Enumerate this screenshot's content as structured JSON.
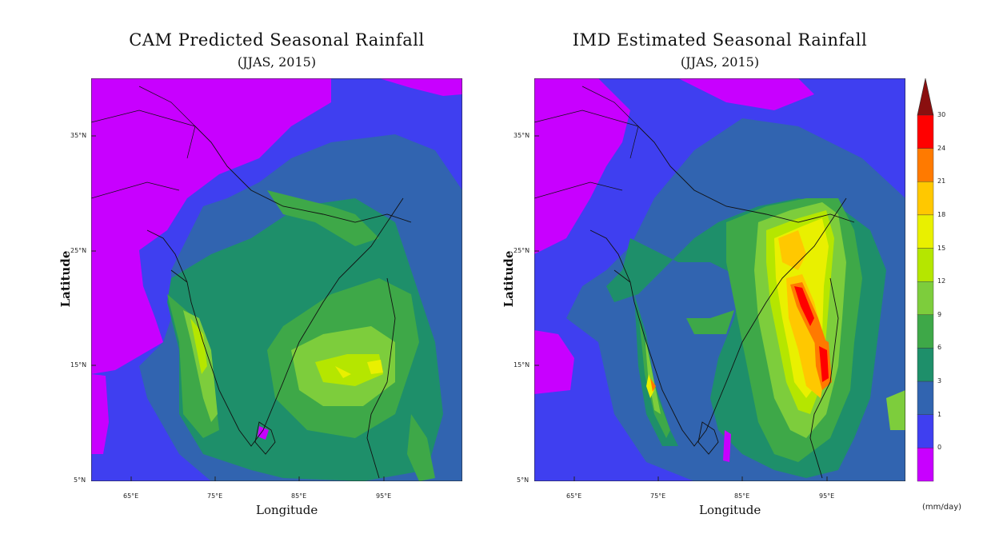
{
  "left_panel": {
    "title": "CAM Predicted Seasonal Rainfall",
    "subtitle": "(JJAS, 2015)",
    "xlabel": "Longitude",
    "ylabel": "Latitude",
    "xticks": [
      "65°E",
      "75°E",
      "85°E",
      "95°E"
    ],
    "yticks": [
      "35°N",
      "25°N",
      "15°N",
      "5°N"
    ]
  },
  "right_panel": {
    "title": "IMD Estimated Seasonal Rainfall",
    "subtitle": "(JJAS, 2015)",
    "xlabel": "Longitude",
    "ylabel": "Latitude",
    "xticks": [
      "65°E",
      "75°E",
      "85°E",
      "95°E"
    ],
    "yticks": [
      "35°N",
      "25°N",
      "15°N",
      "5°N"
    ]
  },
  "colorbar": {
    "levels": [
      "30",
      "24",
      "21",
      "18",
      "15",
      "12",
      "9",
      "6",
      "3",
      "1",
      "0"
    ],
    "colors": [
      "#ff0000",
      "#ff7a00",
      "#ffc800",
      "#e9f000",
      "#b5e600",
      "#7dcd3c",
      "#3ea848",
      "#1e8f6a",
      "#3164b0",
      "#3f3ff0",
      "#c800ff"
    ],
    "overflow_color": "#8a0f0f",
    "units": "(mm/day)"
  },
  "palette": {
    "c0": "#c800ff",
    "c1": "#3f3ff0",
    "c3": "#3164b0",
    "c6": "#1e8f6a",
    "c9": "#3ea848",
    "c12": "#7dcd3c",
    "c15": "#b5e600",
    "c18": "#e9f000",
    "c21": "#ffc800",
    "c24": "#ff7a00",
    "c30": "#ff0000"
  }
}
